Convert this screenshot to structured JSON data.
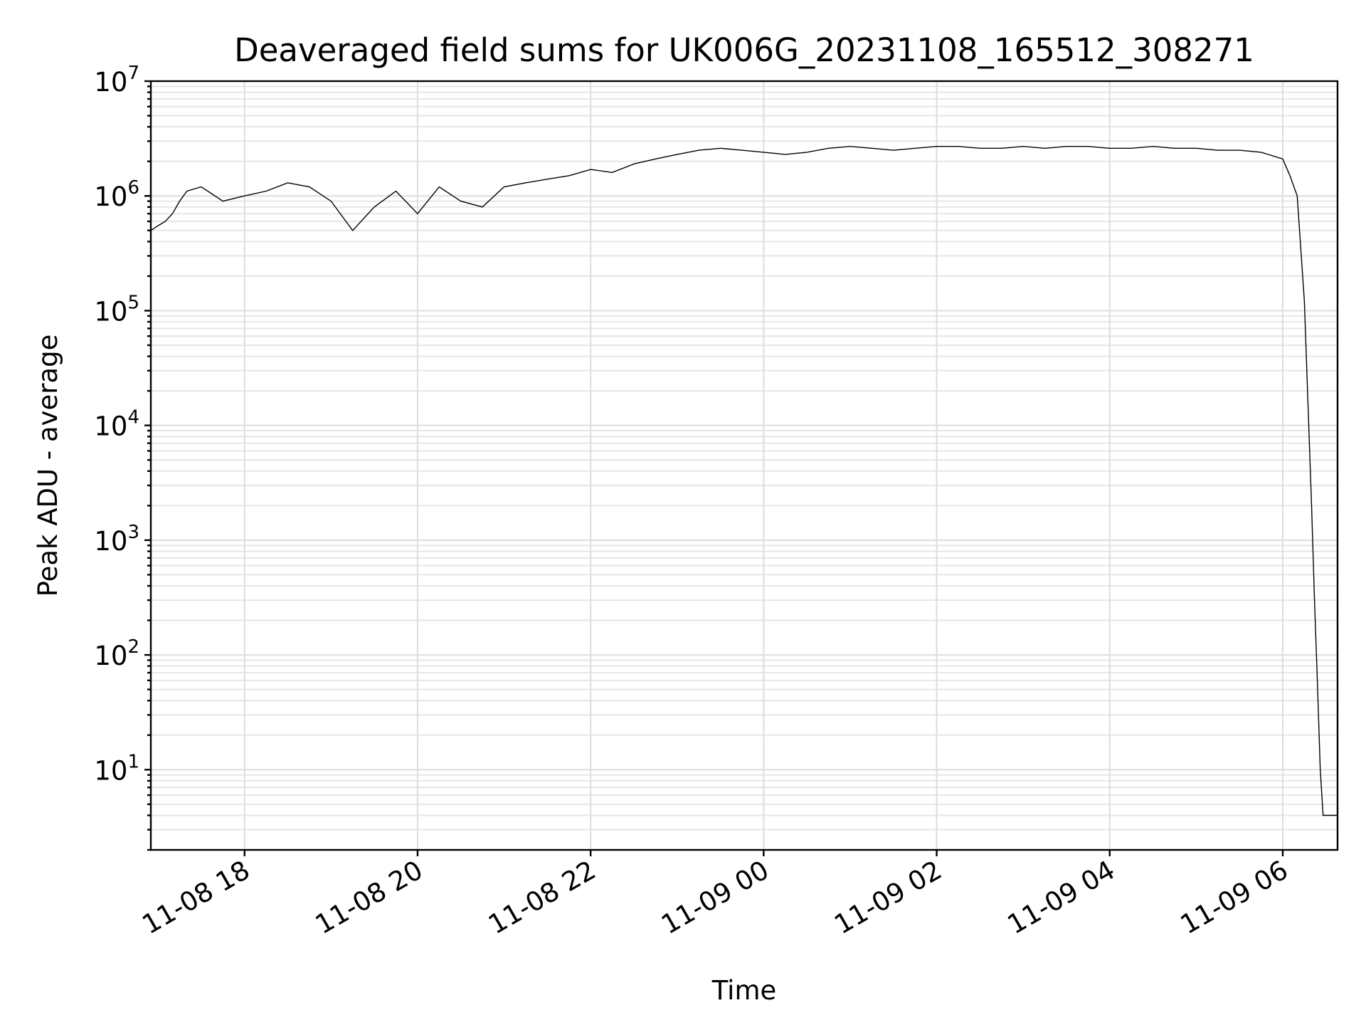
{
  "chart_data": {
    "type": "line",
    "title": "Deaveraged field sums for UK006G_20231108_165512_308271",
    "xlabel": "Time",
    "ylabel": "Peak ADU - average",
    "yscale": "log",
    "ylim": [
      2,
      10000000
    ],
    "xlim": [
      "2023-11-08 16:55",
      "2023-11-09 06:38"
    ],
    "grid": true,
    "x_ticks": [
      {
        "value": "2023-11-08 18:00",
        "label": "11-08 18"
      },
      {
        "value": "2023-11-08 20:00",
        "label": "11-08 20"
      },
      {
        "value": "2023-11-08 22:00",
        "label": "11-08 22"
      },
      {
        "value": "2023-11-09 00:00",
        "label": "11-09 00"
      },
      {
        "value": "2023-11-09 02:00",
        "label": "11-09 02"
      },
      {
        "value": "2023-11-09 04:00",
        "label": "11-09 04"
      },
      {
        "value": "2023-11-09 06:00",
        "label": "11-09 06"
      }
    ],
    "y_ticks": [
      {
        "value": 10,
        "base": "10",
        "exp": "1"
      },
      {
        "value": 100,
        "base": "10",
        "exp": "2"
      },
      {
        "value": 1000,
        "base": "10",
        "exp": "3"
      },
      {
        "value": 10000,
        "base": "10",
        "exp": "4"
      },
      {
        "value": 100000,
        "base": "10",
        "exp": "5"
      },
      {
        "value": 1000000,
        "base": "10",
        "exp": "6"
      },
      {
        "value": 10000000,
        "base": "10",
        "exp": "7"
      }
    ],
    "series": [
      {
        "color": "#000000",
        "x": [
          "2023-11-08 16:55",
          "2023-11-08 17:00",
          "2023-11-08 17:05",
          "2023-11-08 17:10",
          "2023-11-08 17:15",
          "2023-11-08 17:20",
          "2023-11-08 17:30",
          "2023-11-08 17:45",
          "2023-11-08 18:00",
          "2023-11-08 18:15",
          "2023-11-08 18:30",
          "2023-11-08 18:45",
          "2023-11-08 19:00",
          "2023-11-08 19:15",
          "2023-11-08 19:30",
          "2023-11-08 19:45",
          "2023-11-08 20:00",
          "2023-11-08 20:15",
          "2023-11-08 20:30",
          "2023-11-08 20:45",
          "2023-11-08 21:00",
          "2023-11-08 21:15",
          "2023-11-08 21:30",
          "2023-11-08 21:45",
          "2023-11-08 22:00",
          "2023-11-08 22:15",
          "2023-11-08 22:30",
          "2023-11-08 22:45",
          "2023-11-08 23:00",
          "2023-11-08 23:15",
          "2023-11-08 23:30",
          "2023-11-08 23:45",
          "2023-11-09 00:00",
          "2023-11-09 00:15",
          "2023-11-09 00:30",
          "2023-11-09 00:45",
          "2023-11-09 01:00",
          "2023-11-09 01:15",
          "2023-11-09 01:30",
          "2023-11-09 01:45",
          "2023-11-09 02:00",
          "2023-11-09 02:15",
          "2023-11-09 02:30",
          "2023-11-09 02:45",
          "2023-11-09 03:00",
          "2023-11-09 03:15",
          "2023-11-09 03:30",
          "2023-11-09 03:45",
          "2023-11-09 04:00",
          "2023-11-09 04:15",
          "2023-11-09 04:30",
          "2023-11-09 04:45",
          "2023-11-09 05:00",
          "2023-11-09 05:15",
          "2023-11-09 05:30",
          "2023-11-09 05:45",
          "2023-11-09 06:00",
          "2023-11-09 06:05",
          "2023-11-09 06:10",
          "2023-11-09 06:15",
          "2023-11-09 06:20",
          "2023-11-09 06:22",
          "2023-11-09 06:24",
          "2023-11-09 06:26",
          "2023-11-09 06:28",
          "2023-11-09 06:30",
          "2023-11-09 06:32",
          "2023-11-09 06:38"
        ],
        "y": [
          500000,
          550000,
          600000,
          700000,
          900000,
          1100000,
          1200000,
          900000,
          1000000,
          1100000,
          1300000,
          1200000,
          900000,
          500000,
          800000,
          1100000,
          700000,
          1200000,
          900000,
          800000,
          1200000,
          1300000,
          1400000,
          1500000,
          1700000,
          1600000,
          1900000,
          2100000,
          2300000,
          2500000,
          2600000,
          2500000,
          2400000,
          2300000,
          2400000,
          2600000,
          2700000,
          2600000,
          2500000,
          2600000,
          2700000,
          2700000,
          2600000,
          2600000,
          2700000,
          2600000,
          2700000,
          2700000,
          2600000,
          2600000,
          2700000,
          2600000,
          2600000,
          2500000,
          2500000,
          2400000,
          2100000,
          1500000,
          1000000,
          120000,
          2000,
          300,
          60,
          10,
          4,
          4,
          4,
          4
        ]
      }
    ]
  }
}
